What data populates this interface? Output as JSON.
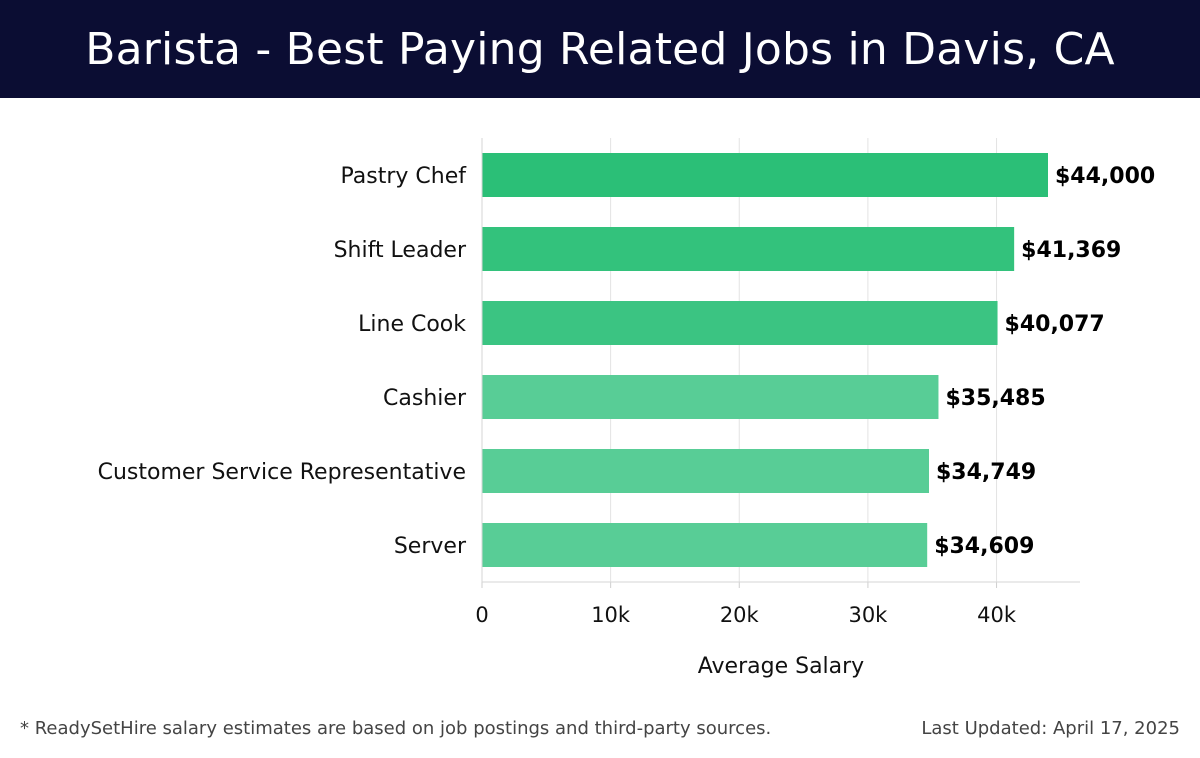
{
  "header": {
    "title": "Barista - Best Paying Related Jobs in Davis, CA"
  },
  "chart_data": {
    "type": "bar",
    "orientation": "horizontal",
    "categories": [
      "Pastry Chef",
      "Shift Leader",
      "Line Cook",
      "Cashier",
      "Customer Service Representative",
      "Server"
    ],
    "values": [
      44000,
      41369,
      40077,
      35485,
      34749,
      34609
    ],
    "value_labels": [
      "$44,000",
      "$41,369",
      "$40,077",
      "$35,485",
      "$34,749",
      "$34,609"
    ],
    "bar_colors": [
      "#2bbf77",
      "#33c27c",
      "#3bc482",
      "#58cd96",
      "#58cd96",
      "#58cd96"
    ],
    "xlabel": "Average Salary",
    "ylabel": "",
    "xlim": [
      0,
      46000
    ],
    "xticks": [
      0,
      10000,
      20000,
      30000,
      40000
    ],
    "xtick_labels": [
      "0",
      "10k",
      "20k",
      "30k",
      "40k"
    ],
    "grid": true
  },
  "footer": {
    "note": "* ReadySetHire salary estimates are based on job postings and third-party sources.",
    "updated": "Last Updated: April 17, 2025"
  }
}
